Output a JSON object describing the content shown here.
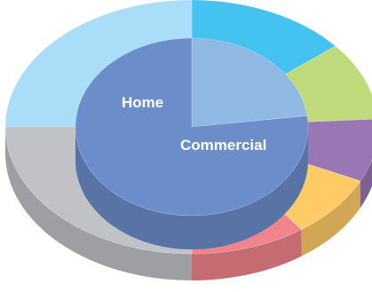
{
  "chart_data": {
    "type": "pie",
    "style": "3d-nested-donut",
    "title": "",
    "inner_ring": {
      "slices": [
        {
          "label": "Home",
          "value": 23,
          "color": "#8FB8E3"
        },
        {
          "label": "Commercial",
          "value": 77,
          "color": "#6B8ECB"
        }
      ]
    },
    "outer_ring": {
      "slices": [
        {
          "label": "",
          "value": 14,
          "color": "#45C3F0"
        },
        {
          "label": "",
          "value": 10,
          "color": "#BFDA7A"
        },
        {
          "label": "",
          "value": 8,
          "color": "#9A76B5"
        },
        {
          "label": "",
          "value": 8,
          "color": "#FFCB66"
        },
        {
          "label": "",
          "value": 10,
          "color": "#F0848C"
        },
        {
          "label": "",
          "value": 25,
          "color": "#C0C2C6"
        },
        {
          "label": "",
          "value": 25,
          "color": "#AADDF8"
        }
      ]
    }
  }
}
